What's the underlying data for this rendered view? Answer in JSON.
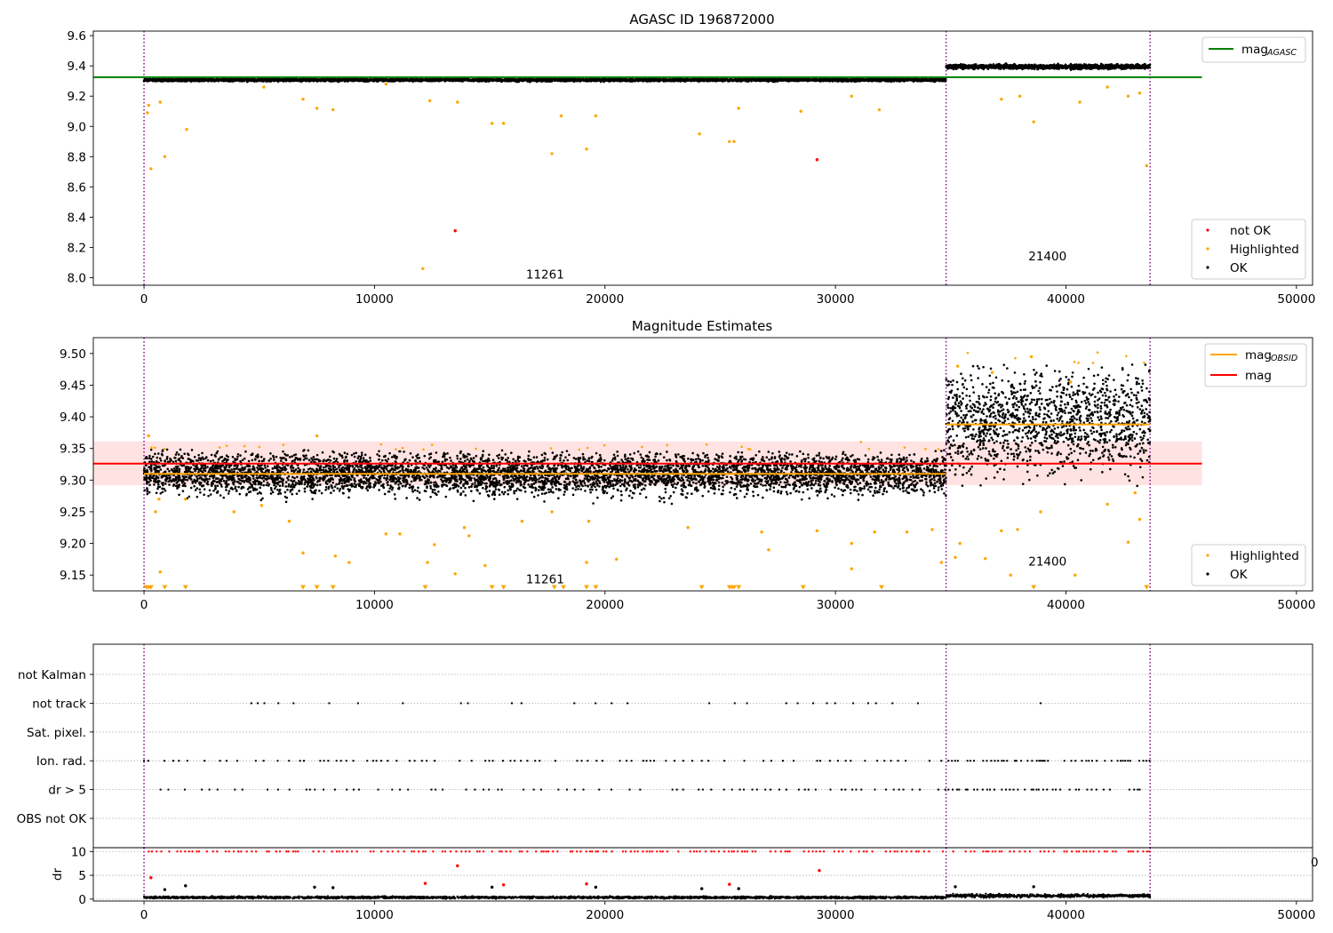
{
  "chart_data": [
    {
      "type": "scatter",
      "title": "AGASC ID 196872000",
      "xlabel": "",
      "ylabel": "",
      "xlim": [
        -2200,
        50700
      ],
      "ylim": [
        7.95,
        9.63
      ],
      "xticks": [
        0,
        10000,
        20000,
        30000,
        40000,
        50000
      ],
      "yticks": [
        8.0,
        8.2,
        8.4,
        8.6,
        8.8,
        9.0,
        9.2,
        9.4,
        9.6
      ],
      "ytick_format": 1,
      "grid": false,
      "obsid_boundaries": [
        0,
        34800,
        43650
      ],
      "obsid_labels": [
        {
          "text": "11261",
          "x": 17400,
          "y": 7.995
        },
        {
          "text": "21400",
          "x": 39200,
          "y": 8.115
        }
      ],
      "lines": [
        {
          "name": "mag_AGASC",
          "label_main": "mag",
          "label_sub": "AGASC",
          "color": "#008000",
          "y": 9.325,
          "x_range": [
            -2200,
            45900
          ]
        }
      ],
      "bands": [
        {
          "from": 0,
          "to": 34800,
          "center": 9.307,
          "spread": 0.012
        },
        {
          "from": 34800,
          "to": 43650,
          "center": 9.395,
          "spread": 0.02
        }
      ],
      "outliers": [
        {
          "x": 150,
          "y": 9.09,
          "status": "Highlighted"
        },
        {
          "x": 300,
          "y": 8.72,
          "status": "Highlighted"
        },
        {
          "x": 200,
          "y": 9.14,
          "status": "Highlighted"
        },
        {
          "x": 900,
          "y": 8.8,
          "status": "Highlighted"
        },
        {
          "x": 700,
          "y": 9.16,
          "status": "Highlighted"
        },
        {
          "x": 1850,
          "y": 8.98,
          "status": "Highlighted"
        },
        {
          "x": 5200,
          "y": 9.26,
          "status": "Highlighted"
        },
        {
          "x": 6900,
          "y": 9.18,
          "status": "Highlighted"
        },
        {
          "x": 7500,
          "y": 9.12,
          "status": "Highlighted"
        },
        {
          "x": 8200,
          "y": 9.11,
          "status": "Highlighted"
        },
        {
          "x": 10500,
          "y": 9.28,
          "status": "Highlighted"
        },
        {
          "x": 12100,
          "y": 8.06,
          "status": "Highlighted"
        },
        {
          "x": 12400,
          "y": 9.17,
          "status": "Highlighted"
        },
        {
          "x": 13500,
          "y": 8.31,
          "status": "not OK"
        },
        {
          "x": 13600,
          "y": 9.16,
          "status": "Highlighted"
        },
        {
          "x": 15100,
          "y": 9.02,
          "status": "Highlighted"
        },
        {
          "x": 15600,
          "y": 9.02,
          "status": "Highlighted"
        },
        {
          "x": 17700,
          "y": 8.82,
          "status": "Highlighted"
        },
        {
          "x": 18100,
          "y": 9.07,
          "status": "Highlighted"
        },
        {
          "x": 19200,
          "y": 8.85,
          "status": "Highlighted"
        },
        {
          "x": 19600,
          "y": 9.07,
          "status": "Highlighted"
        },
        {
          "x": 24100,
          "y": 8.95,
          "status": "Highlighted"
        },
        {
          "x": 25400,
          "y": 8.9,
          "status": "Highlighted"
        },
        {
          "x": 25600,
          "y": 8.9,
          "status": "Highlighted"
        },
        {
          "x": 25800,
          "y": 9.12,
          "status": "Highlighted"
        },
        {
          "x": 28500,
          "y": 9.1,
          "status": "Highlighted"
        },
        {
          "x": 29200,
          "y": 8.78,
          "status": "not OK"
        },
        {
          "x": 30700,
          "y": 9.2,
          "status": "Highlighted"
        },
        {
          "x": 31900,
          "y": 9.11,
          "status": "Highlighted"
        },
        {
          "x": 37200,
          "y": 9.18,
          "status": "Highlighted"
        },
        {
          "x": 38000,
          "y": 9.2,
          "status": "Highlighted"
        },
        {
          "x": 38600,
          "y": 9.03,
          "status": "Highlighted"
        },
        {
          "x": 40600,
          "y": 9.16,
          "status": "Highlighted"
        },
        {
          "x": 41800,
          "y": 9.26,
          "status": "Highlighted"
        },
        {
          "x": 42700,
          "y": 9.2,
          "status": "Highlighted"
        },
        {
          "x": 43200,
          "y": 9.22,
          "status": "Highlighted"
        },
        {
          "x": 43500,
          "y": 8.74,
          "status": "Highlighted"
        }
      ],
      "legend_placement": "lower-right",
      "legend": [
        {
          "label": "not OK",
          "color": "#ff0000"
        },
        {
          "label": "Highlighted",
          "color": "#ffa500"
        },
        {
          "label": "OK",
          "color": "#000000"
        }
      ]
    },
    {
      "type": "scatter",
      "title": "Magnitude Estimates",
      "xlabel": "",
      "ylabel": "",
      "xlim": [
        -2200,
        50700
      ],
      "ylim": [
        9.125,
        9.525
      ],
      "xticks": [
        0,
        10000,
        20000,
        30000,
        40000,
        50000
      ],
      "yticks": [
        9.15,
        9.2,
        9.25,
        9.3,
        9.35,
        9.4,
        9.45,
        9.5
      ],
      "ytick_format": 2,
      "grid": false,
      "obsid_boundaries": [
        0,
        34800,
        43650
      ],
      "obsid_labels": [
        {
          "text": "11261",
          "x": 17400,
          "y": 9.137
        },
        {
          "text": "21400",
          "x": 39200,
          "y": 9.165
        }
      ],
      "shaded_band": {
        "y_low": 9.292,
        "y_high": 9.361,
        "x_range": [
          -2200,
          45900
        ],
        "color": "#ffc0c0"
      },
      "lines": [
        {
          "name": "mag",
          "label_main": "mag",
          "color": "#ff0000",
          "y": 9.326,
          "x_range": [
            -2200,
            45900
          ]
        },
        {
          "name": "mag_OBSID-1",
          "label_main": "mag",
          "label_sub": "OBSID",
          "color": "#ffa500",
          "y": 9.31,
          "x_range": [
            0,
            34800
          ]
        },
        {
          "name": "mag_OBSID-2",
          "color": "#ffa500",
          "y": 9.388,
          "x_range": [
            34800,
            43650
          ]
        }
      ],
      "bands": [
        {
          "from": 0,
          "to": 34800,
          "center": 9.31,
          "spread": 0.045
        },
        {
          "from": 34800,
          "to": 43650,
          "center": 9.39,
          "spread": 0.11
        }
      ],
      "outliers": [
        {
          "x": 200,
          "y": 9.37,
          "status": "Highlighted"
        },
        {
          "x": 500,
          "y": 9.25,
          "status": "Highlighted"
        },
        {
          "x": 650,
          "y": 9.27,
          "status": "Highlighted"
        },
        {
          "x": 700,
          "y": 9.155,
          "status": "Highlighted"
        },
        {
          "x": 1800,
          "y": 9.27,
          "status": "Highlighted"
        },
        {
          "x": 3900,
          "y": 9.25,
          "status": "Highlighted"
        },
        {
          "x": 5100,
          "y": 9.26,
          "status": "Highlighted"
        },
        {
          "x": 6300,
          "y": 9.235,
          "status": "Highlighted"
        },
        {
          "x": 6900,
          "y": 9.185,
          "status": "Highlighted"
        },
        {
          "x": 7500,
          "y": 9.37,
          "status": "Highlighted"
        },
        {
          "x": 8300,
          "y": 9.18,
          "status": "Highlighted"
        },
        {
          "x": 8900,
          "y": 9.17,
          "status": "Highlighted"
        },
        {
          "x": 10500,
          "y": 9.215,
          "status": "Highlighted"
        },
        {
          "x": 11100,
          "y": 9.215,
          "status": "Highlighted"
        },
        {
          "x": 12300,
          "y": 9.17,
          "status": "Highlighted"
        },
        {
          "x": 12600,
          "y": 9.198,
          "status": "Highlighted"
        },
        {
          "x": 13500,
          "y": 9.152,
          "status": "Highlighted"
        },
        {
          "x": 13900,
          "y": 9.225,
          "status": "Highlighted"
        },
        {
          "x": 14100,
          "y": 9.212,
          "status": "Highlighted"
        },
        {
          "x": 14800,
          "y": 9.165,
          "status": "Highlighted"
        },
        {
          "x": 16400,
          "y": 9.235,
          "status": "Highlighted"
        },
        {
          "x": 17700,
          "y": 9.25,
          "status": "Highlighted"
        },
        {
          "x": 19200,
          "y": 9.17,
          "status": "Highlighted"
        },
        {
          "x": 19300,
          "y": 9.235,
          "status": "Highlighted"
        },
        {
          "x": 20500,
          "y": 9.175,
          "status": "Highlighted"
        },
        {
          "x": 23600,
          "y": 9.225,
          "status": "Highlighted"
        },
        {
          "x": 26800,
          "y": 9.218,
          "status": "Highlighted"
        },
        {
          "x": 27100,
          "y": 9.19,
          "status": "Highlighted"
        },
        {
          "x": 29200,
          "y": 9.22,
          "status": "Highlighted"
        },
        {
          "x": 30700,
          "y": 9.16,
          "status": "Highlighted"
        },
        {
          "x": 30700,
          "y": 9.2,
          "status": "Highlighted"
        },
        {
          "x": 31700,
          "y": 9.218,
          "status": "Highlighted"
        },
        {
          "x": 33100,
          "y": 9.218,
          "status": "Highlighted"
        },
        {
          "x": 34200,
          "y": 9.222,
          "status": "Highlighted"
        },
        {
          "x": 34600,
          "y": 9.17,
          "status": "Highlighted"
        },
        {
          "x": 35200,
          "y": 9.178,
          "status": "Highlighted"
        },
        {
          "x": 35400,
          "y": 9.2,
          "status": "Highlighted"
        },
        {
          "x": 36500,
          "y": 9.176,
          "status": "Highlighted"
        },
        {
          "x": 37200,
          "y": 9.22,
          "status": "Highlighted"
        },
        {
          "x": 37600,
          "y": 9.15,
          "status": "Highlighted"
        },
        {
          "x": 37900,
          "y": 9.222,
          "status": "Highlighted"
        },
        {
          "x": 38900,
          "y": 9.25,
          "status": "Highlighted"
        },
        {
          "x": 40400,
          "y": 9.15,
          "status": "Highlighted"
        },
        {
          "x": 41800,
          "y": 9.262,
          "status": "Highlighted"
        },
        {
          "x": 42700,
          "y": 9.202,
          "status": "Highlighted"
        },
        {
          "x": 43000,
          "y": 9.28,
          "status": "Highlighted"
        },
        {
          "x": 43200,
          "y": 9.238,
          "status": "Highlighted"
        },
        {
          "x": 38500,
          "y": 9.495,
          "status": "Highlighted"
        },
        {
          "x": 35300,
          "y": 9.48,
          "status": "Highlighted"
        },
        {
          "x": 36800,
          "y": 9.47,
          "status": "Highlighted"
        },
        {
          "x": 40200,
          "y": 9.455,
          "status": "Highlighted"
        }
      ],
      "censored": [
        100,
        200,
        300,
        900,
        1800,
        6900,
        7500,
        8200,
        12200,
        15100,
        15600,
        17800,
        18200,
        19200,
        19600,
        24200,
        25400,
        25500,
        25600,
        25800,
        28600,
        32000,
        38600,
        43500
      ],
      "censored_y": 9.13,
      "legend_placement": "lower-right",
      "legend": [
        {
          "label": "Highlighted",
          "color": "#ffa500"
        },
        {
          "label": "OK",
          "color": "#000000"
        }
      ],
      "legend2_placement": "upper-right"
    },
    {
      "type": "scatter",
      "title": "",
      "xlabel": "",
      "ylabel": "",
      "xlim": [
        -2200,
        50700
      ],
      "flag_rows": [
        "not Kalman",
        "not track",
        "Sat. pixel.",
        "Ion. rad.",
        "dr > 5",
        "OBS not OK"
      ],
      "flag_segments": [
        {
          "row": "not track",
          "from": 2400,
          "to": 34500,
          "spacing": 480
        },
        {
          "row": "not track",
          "from": 38900,
          "to": 38900,
          "spacing": 1
        },
        {
          "row": "Ion. rad.",
          "from": 0,
          "to": 34800,
          "spacing": 260
        },
        {
          "row": "Ion. rad.",
          "from": 34900,
          "to": 43650,
          "spacing": 140
        },
        {
          "row": "dr > 5",
          "from": 0,
          "to": 34800,
          "spacing": 270
        },
        {
          "row": "dr > 5",
          "from": 34900,
          "to": 43650,
          "spacing": 140
        }
      ]
    },
    {
      "type": "scatter",
      "title": "",
      "xlabel": "",
      "ylabel": "dr",
      "xlim": [
        -2200,
        50700
      ],
      "ylim": [
        -0.4,
        10.8
      ],
      "yticks": [
        0,
        5,
        10
      ],
      "ytick_format": 0,
      "stray_tick_label": "0",
      "bands": [
        {
          "from": 0,
          "to": 34800,
          "center": 0.35,
          "spread": 0.3
        },
        {
          "from": 34800,
          "to": 43650,
          "center": 0.7,
          "spread": 0.45
        }
      ],
      "clipped_y": 10,
      "outliers": [
        {
          "x": 300,
          "y": 4.5,
          "status": "not OK"
        },
        {
          "x": 13600,
          "y": 7.0,
          "status": "not OK"
        },
        {
          "x": 29300,
          "y": 6.0,
          "status": "not OK"
        },
        {
          "x": 12200,
          "y": 3.3,
          "status": "not OK"
        },
        {
          "x": 15600,
          "y": 3.0,
          "status": "not OK"
        },
        {
          "x": 19200,
          "y": 3.2,
          "status": "not OK"
        },
        {
          "x": 25400,
          "y": 3.1,
          "status": "not OK"
        },
        {
          "x": 1800,
          "y": 2.8,
          "status": "OK"
        },
        {
          "x": 7400,
          "y": 2.5,
          "status": "OK"
        },
        {
          "x": 8200,
          "y": 2.4,
          "status": "OK"
        },
        {
          "x": 15100,
          "y": 2.5,
          "status": "OK"
        },
        {
          "x": 19600,
          "y": 2.5,
          "status": "OK"
        },
        {
          "x": 24200,
          "y": 2.2,
          "status": "OK"
        },
        {
          "x": 25800,
          "y": 2.2,
          "status": "OK"
        },
        {
          "x": 35200,
          "y": 2.6,
          "status": "OK"
        },
        {
          "x": 38600,
          "y": 2.6,
          "status": "OK"
        },
        {
          "x": 900,
          "y": 2.0,
          "status": "OK"
        }
      ]
    }
  ]
}
